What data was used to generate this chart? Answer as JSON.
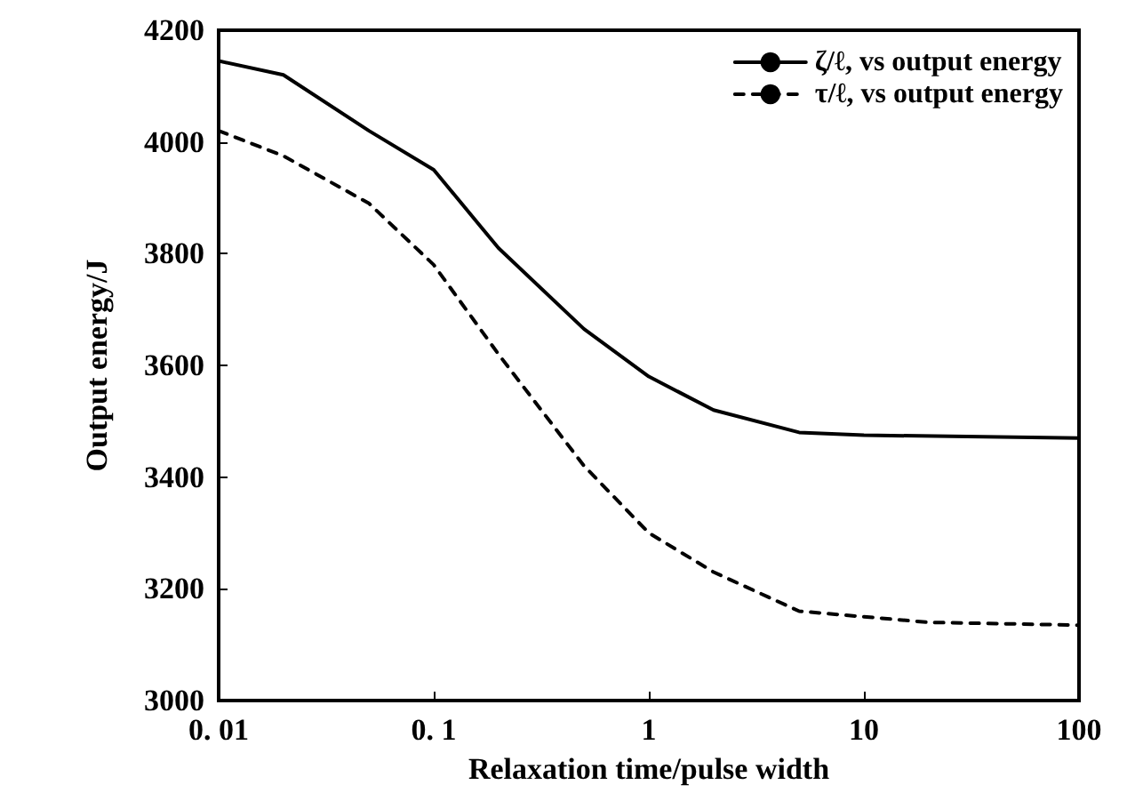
{
  "chart_data": {
    "type": "line",
    "xlabel": "Relaxation time/pulse width",
    "ylabel": "Output energy/J",
    "log": "x",
    "xlim": [
      0.01,
      100
    ],
    "xticks": [
      {
        "value": 0.01,
        "label": "0. 01"
      },
      {
        "value": 0.1,
        "label": "0. 1"
      },
      1,
      10,
      100
    ],
    "ylim": [
      3000,
      4200
    ],
    "yticks": [
      3000,
      3200,
      3400,
      3600,
      3800,
      4000,
      4200
    ],
    "grid": false,
    "legend": "top right",
    "marker": "none",
    "series": [
      {
        "name": "ζ/ℓ, vs output energy",
        "color": "#000000",
        "line_style": "solid",
        "x": [
          0.01,
          0.02,
          0.05,
          0.1,
          0.2,
          0.5,
          1,
          2,
          5,
          10,
          100
        ],
        "values": [
          4145,
          4120,
          4020,
          3950,
          3810,
          3665,
          3580,
          3520,
          3480,
          3475,
          3470
        ]
      },
      {
        "name": "τ/ℓ, vs output energy",
        "color": "#000000",
        "line_style": "dashed",
        "x": [
          0.01,
          0.02,
          0.05,
          0.1,
          0.2,
          0.5,
          1,
          2,
          5,
          10,
          20,
          100
        ],
        "values": [
          4020,
          3975,
          3890,
          3780,
          3620,
          3420,
          3300,
          3230,
          3160,
          3150,
          3140,
          3135
        ]
      }
    ]
  }
}
